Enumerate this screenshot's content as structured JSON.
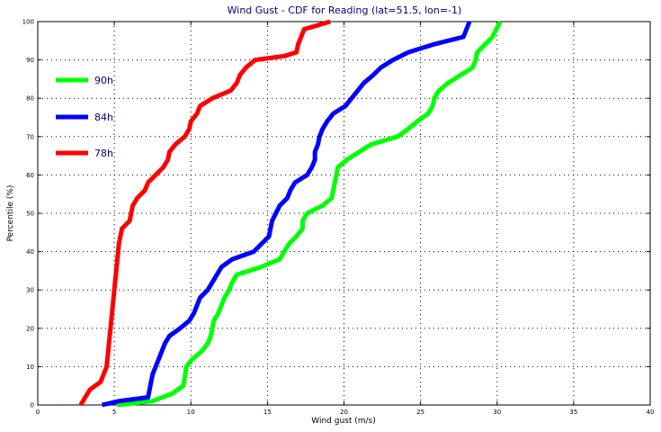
{
  "chart_data": {
    "type": "line",
    "title": "Wind Gust - CDF for Reading (lat=51.5, lon=-1)",
    "xlabel": "Wind gust (m/s)",
    "ylabel": "Percentile (%)",
    "xlim": [
      0,
      40
    ],
    "ylim": [
      0,
      100
    ],
    "xticks": [
      0,
      5,
      10,
      15,
      20,
      25,
      30,
      35,
      40
    ],
    "yticks": [
      0,
      10,
      20,
      30,
      40,
      50,
      60,
      70,
      80,
      90,
      100
    ],
    "grid": true,
    "legend_position": "top-left",
    "series": [
      {
        "name": "90h",
        "color": "#00ff00",
        "x": [
          5.2,
          7.5,
          8.8,
          9.5,
          9.6,
          9.7,
          10.1,
          10.7,
          11.1,
          11.3,
          11.4,
          11.5,
          11.8,
          12.0,
          12.2,
          12.5,
          12.7,
          13.0,
          14.6,
          15.8,
          16.1,
          16.4,
          16.9,
          17.3,
          17.3,
          17.6,
          18.6,
          19.2,
          19.3,
          19.4,
          19.5,
          19.6,
          20.2,
          21.0,
          21.8,
          23.5,
          24.2,
          24.8,
          25.5,
          25.8,
          25.9,
          26.2,
          26.8,
          27.6,
          28.4,
          28.6,
          28.7,
          29.2,
          29.7,
          30.2
        ],
        "y": [
          0,
          1,
          3,
          5,
          7,
          10,
          12,
          14,
          16,
          18,
          20,
          22,
          24,
          26,
          28,
          30,
          32,
          34,
          36,
          38,
          40,
          42,
          44,
          46,
          48,
          50,
          52,
          54,
          56,
          58,
          60,
          62,
          64,
          66,
          68,
          70,
          72,
          74,
          76,
          78,
          80,
          82,
          84,
          86,
          88,
          90,
          92,
          94,
          96,
          100
        ]
      },
      {
        "name": "84h",
        "color": "#0000ff",
        "x": [
          4.2,
          5.3,
          7.2,
          7.3,
          7.4,
          7.5,
          7.7,
          7.9,
          8.1,
          8.3,
          8.6,
          9.3,
          9.9,
          10.2,
          10.4,
          10.6,
          11.1,
          11.4,
          11.7,
          12.0,
          12.7,
          14.1,
          15.1,
          15.3,
          15.8,
          16.3,
          16.5,
          16.8,
          17.6,
          17.9,
          18.1,
          18.1,
          18.3,
          18.4,
          18.6,
          18.9,
          19.3,
          20.1,
          20.5,
          20.9,
          21.3,
          21.9,
          22.4,
          23.2,
          24.2,
          25.8,
          27.8,
          28.2
        ],
        "y": [
          0,
          1,
          2,
          4,
          6,
          8,
          10,
          12,
          14,
          16,
          18,
          20,
          22,
          24,
          26,
          28,
          30,
          32,
          34,
          36,
          38,
          40,
          44,
          48,
          52,
          54,
          56,
          58,
          60,
          62,
          64,
          66,
          68,
          70,
          72,
          74,
          76,
          78,
          80,
          82,
          84,
          86,
          88,
          90,
          92,
          94,
          96,
          100
        ]
      },
      {
        "name": "78h",
        "color": "#ff0000",
        "x": [
          2.8,
          3.1,
          3.4,
          4.1,
          4.3,
          4.5,
          4.6,
          4.7,
          4.8,
          4.9,
          5.0,
          5.1,
          5.2,
          5.3,
          5.5,
          6.0,
          6.2,
          6.5,
          7.0,
          7.2,
          7.7,
          8.2,
          8.5,
          8.6,
          9.0,
          9.6,
          9.9,
          10.0,
          10.4,
          10.6,
          11.4,
          12.6,
          13.0,
          13.2,
          13.6,
          14.2,
          16.1,
          16.9,
          17.0,
          17.4,
          19.1
        ],
        "y": [
          0,
          2,
          4,
          6,
          8,
          10,
          14,
          18,
          22,
          26,
          30,
          34,
          38,
          42,
          46,
          48,
          52,
          54,
          56,
          58,
          60,
          62,
          64,
          66,
          68,
          70,
          72,
          74,
          76,
          78,
          80,
          82,
          84,
          86,
          88,
          90,
          91,
          92,
          94,
          98,
          100
        ]
      }
    ]
  }
}
